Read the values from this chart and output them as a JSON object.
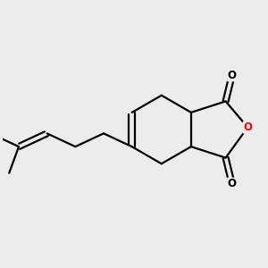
{
  "background_color": "#ececec",
  "bond_color": "#000000",
  "oxygen_color": "#ff0000",
  "line_width": 1.6,
  "figsize": [
    3.0,
    3.0
  ],
  "dpi": 100,
  "xlim": [
    -1.05,
    0.72
  ],
  "ylim": [
    -0.62,
    0.62
  ]
}
